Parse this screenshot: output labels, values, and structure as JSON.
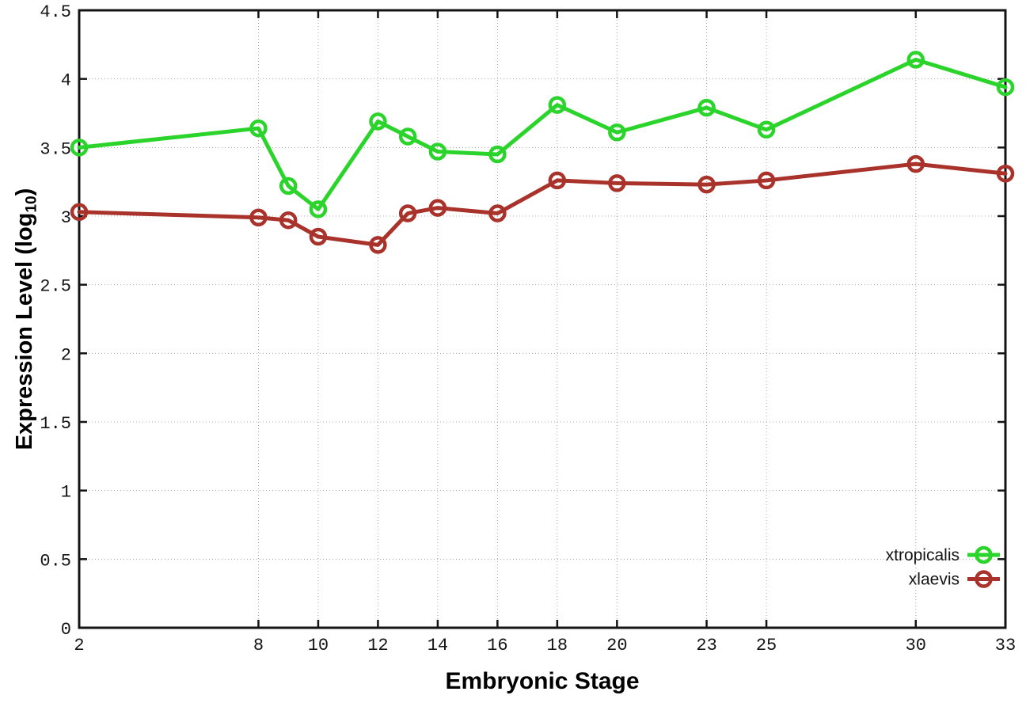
{
  "figure": {
    "background": "#ffffff",
    "frame_color": "#141414",
    "grid_color": "#a8a8a8"
  },
  "chart_data": {
    "type": "line",
    "title": "",
    "xlabel": "Embryonic Stage",
    "ylabel": "Expression Level (log10)",
    "ylabel_parts": {
      "pre": "Expression Level (log",
      "sub": "10",
      "post": ")"
    },
    "xlim": [
      2,
      33
    ],
    "ylim": [
      0,
      4.5
    ],
    "grid": true,
    "legend_position": "inside-bottom-right",
    "x_ticks": [
      2,
      8,
      10,
      12,
      14,
      16,
      18,
      20,
      23,
      25,
      30,
      33
    ],
    "x_tick_labels": [
      "2",
      "8",
      "10",
      "12",
      "14",
      "16",
      "18",
      "20",
      "23",
      "25",
      "30",
      "33"
    ],
    "y_ticks": [
      0,
      0.5,
      1,
      1.5,
      2,
      2.5,
      3,
      3.5,
      4,
      4.5
    ],
    "y_tick_labels": [
      "0",
      "0.5",
      "1",
      "1.5",
      "2",
      "2.5",
      "3",
      "3.5",
      "4",
      "4.5"
    ],
    "x": [
      2,
      8,
      9,
      10,
      12,
      13,
      14,
      16,
      18,
      20,
      23,
      25,
      30,
      33
    ],
    "series": [
      {
        "name": "xtropicalis",
        "color": "#2bd42b",
        "marker": "open-circle",
        "values": [
          3.5,
          3.64,
          3.22,
          3.05,
          3.69,
          3.58,
          3.47,
          3.45,
          3.81,
          3.61,
          3.79,
          3.63,
          4.14,
          3.94
        ]
      },
      {
        "name": "xlaevis",
        "color": "#a9322b",
        "marker": "open-circle",
        "values": [
          3.03,
          2.99,
          2.97,
          2.85,
          2.79,
          3.02,
          3.06,
          3.02,
          3.26,
          3.24,
          3.23,
          3.26,
          3.38,
          3.31
        ]
      }
    ]
  }
}
